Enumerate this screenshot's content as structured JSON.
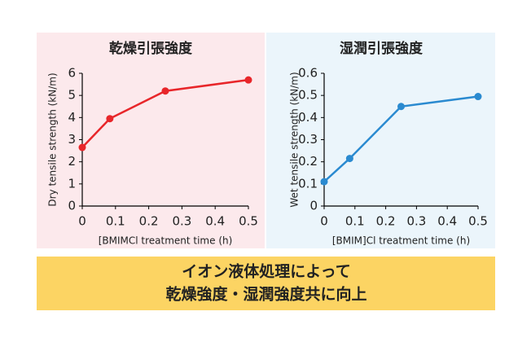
{
  "chart_data": [
    {
      "type": "line",
      "title": "乾燥引張強度",
      "x_label": "[BMIMCl treatment time (h)",
      "y_label": "Dry tensile strength (kN/m)",
      "x": [
        0,
        0.083,
        0.25,
        0.5
      ],
      "values": [
        2.65,
        3.95,
        5.2,
        5.7
      ],
      "color": "#e8262a",
      "xlim": [
        0,
        0.5
      ],
      "xticks": [
        0,
        0.1,
        0.2,
        0.3,
        0.4,
        0.5
      ],
      "ylim": [
        0,
        6
      ],
      "yticks": [
        0,
        1,
        2,
        3,
        4,
        5,
        6
      ]
    },
    {
      "type": "line",
      "title": "湿潤引張強度",
      "x_label": "[BMIM]Cl treatment time (h)",
      "y_label": "Wet tensile strength (kN/m)",
      "x": [
        0,
        0.083,
        0.25,
        0.5
      ],
      "values": [
        0.11,
        0.215,
        0.45,
        0.495
      ],
      "color": "#2a8ad0",
      "xlim": [
        0,
        0.5
      ],
      "xticks": [
        0,
        0.1,
        0.2,
        0.3,
        0.4,
        0.5
      ],
      "ylim": [
        0,
        0.6
      ],
      "yticks": [
        0,
        0.1,
        0.2,
        0.3,
        0.4,
        0.5,
        0.6
      ]
    }
  ],
  "banner": {
    "lines": [
      "イオン液体処理によって",
      "乾燥強度・湿潤強度共に向上"
    ]
  }
}
